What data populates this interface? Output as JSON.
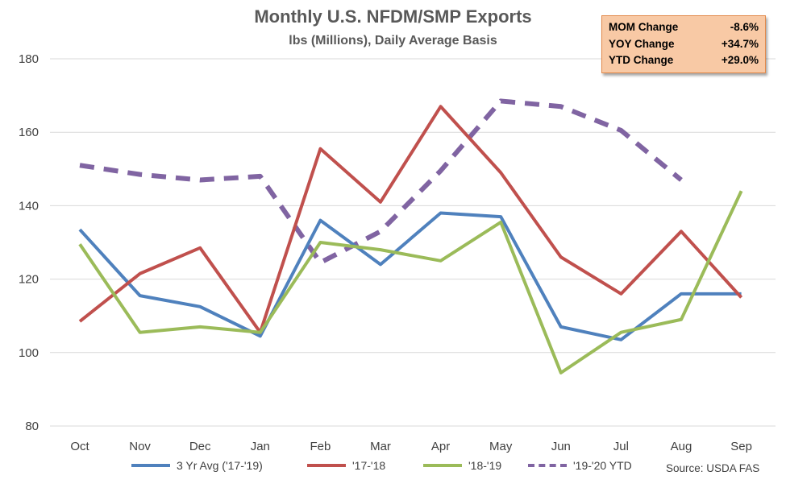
{
  "chart_data": {
    "type": "line",
    "title": "Monthly U.S. NFDM/SMP Exports",
    "subtitle": "lbs (Millions), Daily Average Basis",
    "categories": [
      "Oct",
      "Nov",
      "Dec",
      "Jan",
      "Feb",
      "Mar",
      "Apr",
      "May",
      "Jun",
      "Jul",
      "Aug",
      "Sep"
    ],
    "ylim": [
      80,
      180
    ],
    "yticks": [
      80,
      100,
      120,
      140,
      160,
      180
    ],
    "grid": "horizontal",
    "legend_position": "bottom",
    "series": [
      {
        "name": "3 Yr Avg ('17-'19)",
        "color": "#4f81bd",
        "dashed": false,
        "values": [
          133.5,
          115.5,
          112.5,
          104.5,
          136,
          124,
          138,
          137,
          107,
          103.5,
          116,
          116
        ]
      },
      {
        "name": "'17-'18",
        "color": "#c0504d",
        "dashed": false,
        "values": [
          108.5,
          121.5,
          128.5,
          105.5,
          155.5,
          141,
          167,
          149,
          126,
          116,
          133,
          115
        ]
      },
      {
        "name": "'18-'19",
        "color": "#9bbb59",
        "dashed": false,
        "values": [
          129.5,
          105.5,
          107,
          105.5,
          130,
          128,
          125,
          135.5,
          94.5,
          105.5,
          109,
          144
        ]
      },
      {
        "name": "'19-'20 YTD",
        "color": "#8064a2",
        "dashed": true,
        "values": [
          151,
          148.5,
          147,
          148,
          124.5,
          133,
          149.5,
          168.5,
          167,
          160.5,
          147,
          null
        ]
      }
    ]
  },
  "stats": [
    {
      "label": "MOM Change",
      "value": "-8.6%"
    },
    {
      "label": "YOY Change",
      "value": "+34.7%"
    },
    {
      "label": "YTD Change",
      "value": "+29.0%"
    }
  ],
  "source": "Source: USDA FAS"
}
